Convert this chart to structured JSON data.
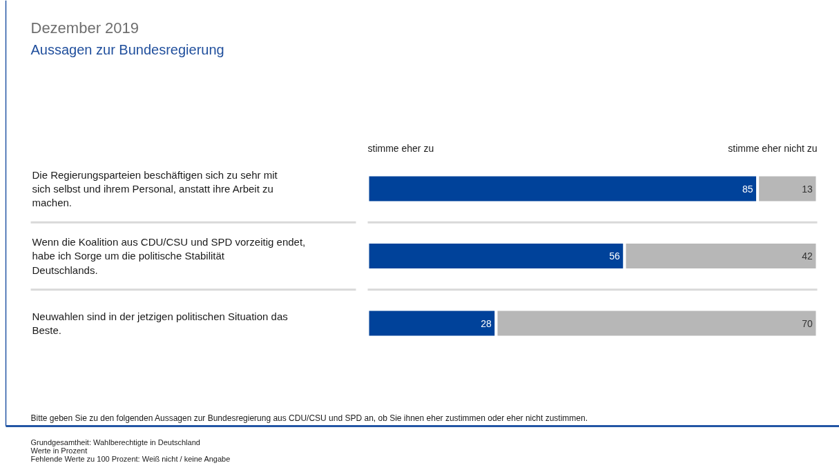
{
  "chart_data": {
    "type": "bar",
    "orientation": "horizontal",
    "title": "Dezember 2019",
    "subtitle": "Aussagen zur Bundesregierung",
    "categories": [
      "Die Regierungsparteien beschäftigen sich zu sehr mit sich selbst und ihrem Personal, anstatt ihre Arbeit zu machen.",
      "Wenn die Koalition aus CDU/CSU und SPD vorzeitig endet, habe ich Sorge um die politische Stabilität Deutschlands.",
      "Neuwahlen sind in der jetzigen politischen Situation das Beste."
    ],
    "series": [
      {
        "name": "stimme eher zu",
        "color": "#00429a",
        "values": [
          85,
          56,
          28
        ]
      },
      {
        "name": "stimme eher nicht zu",
        "color": "#b7b7b7",
        "values": [
          13,
          42,
          70
        ]
      }
    ],
    "stacked": true,
    "data_labels": true,
    "annotations": [
      "Bitte geben Sie zu den folgenden Aussagen zur Bundesregierung aus CDU/CSU und SPD an, ob Sie ihnen eher zustimmen oder eher nicht zustimmen.",
      "Grundgesamtheit: Wahlberechtigte in Deutschland",
      "Werte in Prozent",
      "Fehlende Werte zu 100 Prozent: Weiß nicht / keine Angabe"
    ]
  }
}
